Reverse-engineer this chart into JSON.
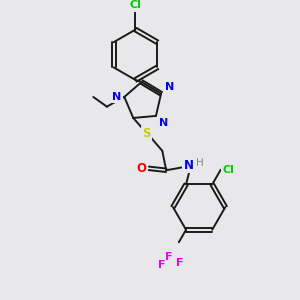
{
  "bg_color": "#e8e8ea",
  "bond_color": "#1a1a1a",
  "atom_colors": {
    "Cl": "#00cc00",
    "N": "#0000ee",
    "S": "#cccc00",
    "O": "#ff0000",
    "H": "#888888",
    "F": "#ee00ee"
  },
  "figsize": [
    3.0,
    3.0
  ],
  "dpi": 100
}
